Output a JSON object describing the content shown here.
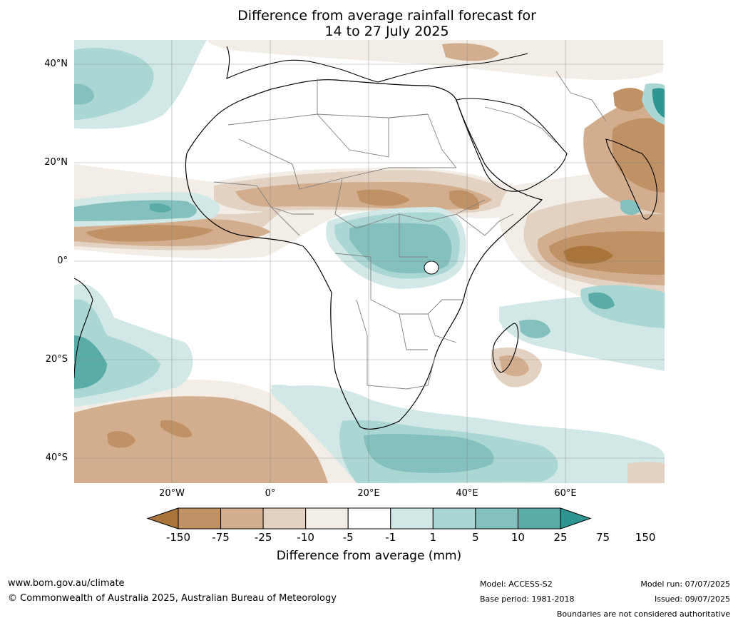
{
  "title": {
    "line1": "Difference from average rainfall forecast for",
    "line2": "14 to 27 July 2025"
  },
  "map": {
    "lat_labels": [
      "40°N",
      "20°N",
      "0°",
      "20°S",
      "40°S"
    ],
    "lon_labels": [
      "20°W",
      "0°",
      "20°E",
      "40°E",
      "60°E"
    ],
    "colors": {
      "dry_extreme": "#a97439",
      "dry_1": "#c09165",
      "dry_2": "#d2ae8e",
      "dry_3": "#e3d2c1",
      "dry_4": "#f2ede6",
      "neutral": "#ffffff",
      "wet_1": "#d2e8e6",
      "wet_2": "#aad6d3",
      "wet_3": "#84c1be",
      "wet_4": "#5aaca8",
      "wet_extreme": "#2e9590"
    }
  },
  "colorbar": {
    "ticks": [
      "-150",
      "-75",
      "-25",
      "-10",
      "-5",
      "-1",
      "1",
      "5",
      "10",
      "25",
      "75",
      "150"
    ],
    "colors": [
      "#a97439",
      "#c09165",
      "#d2ae8e",
      "#e3d2c1",
      "#f2ede6",
      "#ffffff",
      "#d2e8e6",
      "#aad6d3",
      "#84c1be",
      "#5aaca8",
      "#2e9590"
    ],
    "label": "Difference from average (mm)"
  },
  "footer": {
    "website": "www.bom.gov.au/climate",
    "copyright": "© Commonwealth of Australia 2025, Australian Bureau of Meteorology",
    "model": "Model: ACCESS-S2",
    "base_period": "Base period: 1981-2018",
    "model_run": "Model run: 07/07/2025",
    "issued": "Issued: 09/07/2025",
    "disclaimer": "Boundaries are not considered authoritative"
  }
}
